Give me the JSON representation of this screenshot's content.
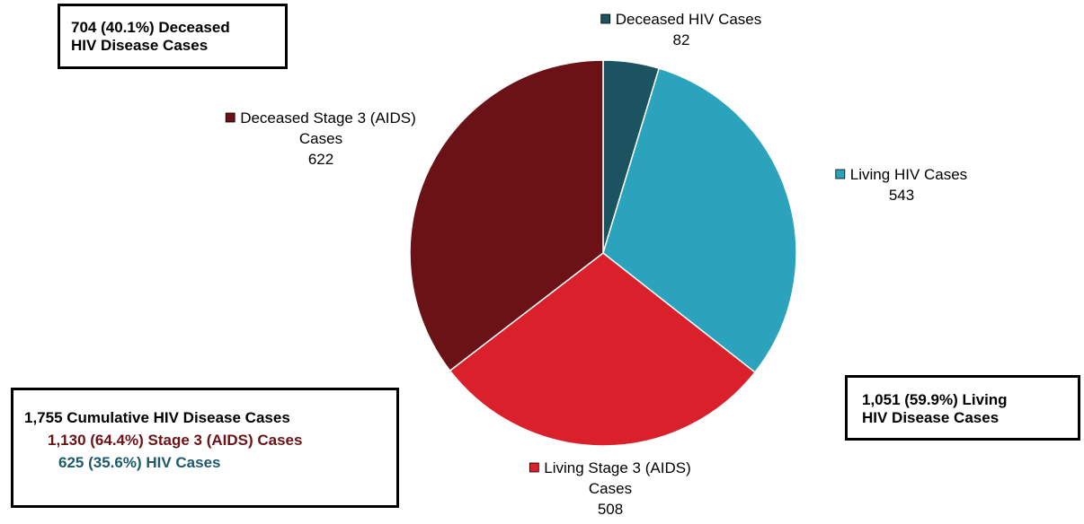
{
  "chart_data": {
    "type": "pie",
    "slices": [
      {
        "label": "Deceased HIV Cases",
        "value": 82,
        "color": "#1c5361"
      },
      {
        "label": "Living HIV Cases",
        "value": 543,
        "color": "#2ca3bd"
      },
      {
        "label": "Living Stage 3 (AIDS) Cases",
        "value": 508,
        "color": "#d9202b"
      },
      {
        "label": "Deceased Stage 3 (AIDS) Cases",
        "value": 622,
        "color": "#6b1216"
      }
    ],
    "label_lines": [
      [
        "Deceased HIV Cases",
        "82"
      ],
      [
        "Living HIV Cases",
        "543"
      ],
      [
        "Living Stage 3 (AIDS)",
        "Cases",
        "508"
      ],
      [
        "Deceased Stage 3 (AIDS)",
        "Cases",
        "622"
      ]
    ]
  },
  "boxes": {
    "deceased": {
      "line1": "704 (40.1%) Deceased",
      "line2": "HIV Disease Cases"
    },
    "living": {
      "line1": "1,051 (59.9%) Living",
      "line2": "HIV Disease Cases"
    },
    "cumulative": {
      "line1": "1,755 Cumulative HIV Disease Cases",
      "line2": "1,130 (64.4%) Stage 3 (AIDS) Cases",
      "line3": "625 (35.6%) HIV Cases"
    }
  }
}
